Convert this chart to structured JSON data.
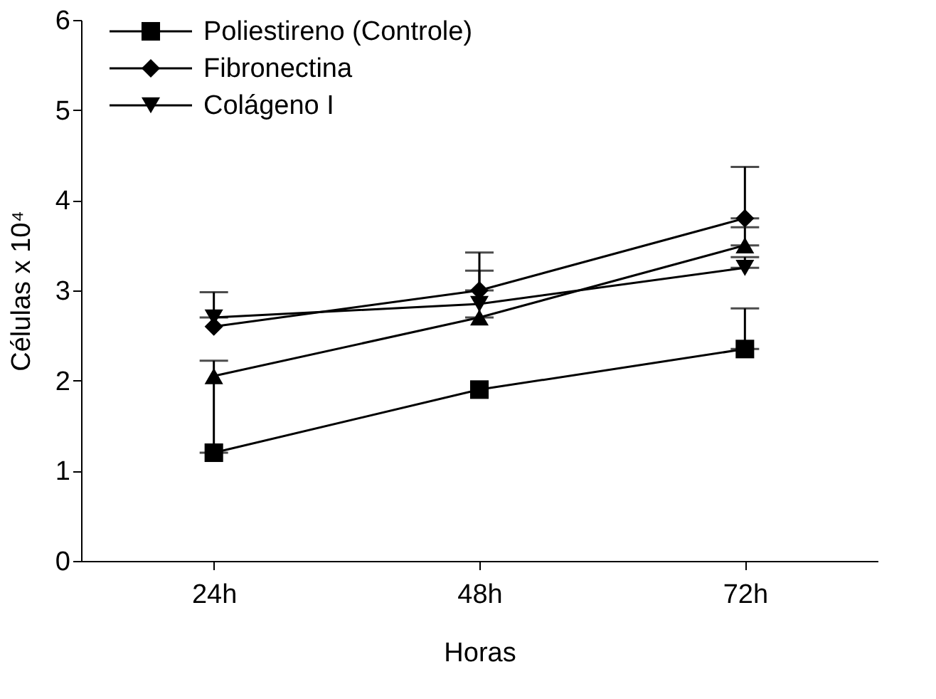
{
  "chart_data": {
    "type": "line",
    "xlabel": "Horas",
    "ylabel": "Células x 10⁴",
    "categories": [
      "24h",
      "48h",
      "72h"
    ],
    "ylim": [
      0,
      6
    ],
    "yticks": [
      0,
      1,
      2,
      3,
      4,
      5,
      6
    ],
    "grid": false,
    "legend": "top left",
    "series": [
      {
        "name": "Poliestireno (Controle)",
        "color": "#000000",
        "marker": "square",
        "values": [
          1.2,
          1.9,
          2.35
        ],
        "errors": [
          [
            1.2,
            2.22
          ],
          null,
          [
            2.35,
            2.8
          ]
        ]
      },
      {
        "color": "#000000",
        "marker": "triangle",
        "values": [
          2.05,
          2.7,
          3.5
        ],
        "errors": [
          null,
          [
            2.7,
            3.22
          ],
          [
            3.5,
            3.7
          ]
        ]
      },
      {
        "name": "Fibronectina",
        "color": "#000000",
        "marker": "diamond",
        "values": [
          2.6,
          3.0,
          3.8
        ],
        "errors": [
          null,
          [
            3.0,
            3.42
          ],
          [
            3.8,
            4.37
          ]
        ]
      },
      {
        "name": "Colágeno I",
        "color": "#000000",
        "marker": "triangle-down",
        "values": [
          2.7,
          2.85,
          3.25
        ],
        "errors": [
          [
            2.7,
            2.98
          ],
          null,
          [
            3.25,
            3.37
          ]
        ]
      }
    ]
  }
}
